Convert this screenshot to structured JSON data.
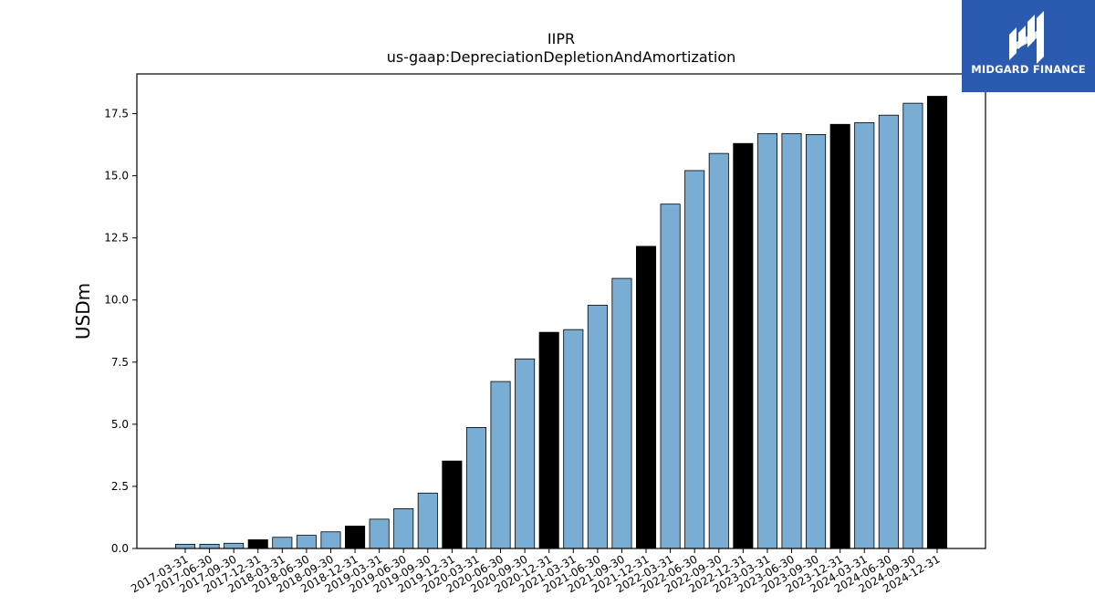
{
  "logo": {
    "text": "MIDGARD FINANCE",
    "color": "#2a5bb0"
  },
  "chart_data": {
    "type": "bar",
    "title": "IIPR",
    "subtitle": "us-gaap:DepreciationDepletionAndAmortization",
    "xlabel": "",
    "ylabel": "USDm",
    "ylim": [
      0,
      19.1
    ],
    "yticks": [
      0.0,
      2.5,
      5.0,
      7.5,
      10.0,
      12.5,
      15.0,
      17.5
    ],
    "grid": false,
    "colors": {
      "quarter": "#7aadd3",
      "year_end": "#000000"
    },
    "categories": [
      "2017-03-31",
      "2017-06-30",
      "2017-09-30",
      "2017-12-31",
      "2018-03-31",
      "2018-06-30",
      "2018-09-30",
      "2018-12-31",
      "2019-03-31",
      "2019-06-30",
      "2019-09-30",
      "2019-12-31",
      "2020-03-31",
      "2020-06-30",
      "2020-09-30",
      "2020-12-31",
      "2021-03-31",
      "2021-06-30",
      "2021-09-30",
      "2021-12-31",
      "2022-03-31",
      "2022-06-30",
      "2022-09-30",
      "2022-12-31",
      "2023-03-31",
      "2023-06-30",
      "2023-09-30",
      "2023-12-31",
      "2024-03-31",
      "2024-06-30",
      "2024-09-30",
      "2024-12-31"
    ],
    "values": [
      0.17,
      0.17,
      0.21,
      0.35,
      0.45,
      0.53,
      0.67,
      0.9,
      1.18,
      1.6,
      2.23,
      3.52,
      4.87,
      6.72,
      7.63,
      8.7,
      8.81,
      9.79,
      10.87,
      12.16,
      13.86,
      15.21,
      15.9,
      16.3,
      16.7,
      16.7,
      16.66,
      17.07,
      17.14,
      17.44,
      17.92,
      18.2
    ]
  }
}
